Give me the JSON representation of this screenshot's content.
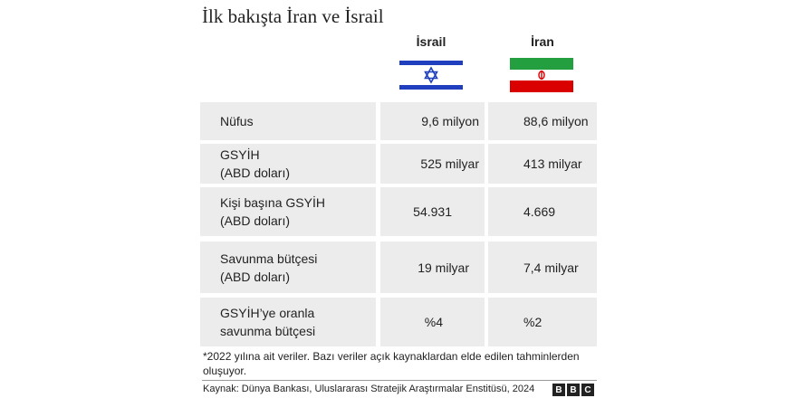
{
  "title": "İlk bakışta İran ve İsrail",
  "columns": {
    "israel": {
      "label": "İsrail",
      "flag_icon": "israel-flag-icon"
    },
    "iran": {
      "label": "İran",
      "flag_icon": "iran-flag-icon"
    }
  },
  "rows": [
    {
      "label_line1": "Nüfus",
      "label_line2": "",
      "israel": "9,6 milyon",
      "iran": "88,6 milyon"
    },
    {
      "label_line1": "GSYİH",
      "label_line2": "(ABD doları)",
      "israel": "525 milyar",
      "iran": "413 milyar"
    },
    {
      "label_line1": "Kişi başına GSYİH",
      "label_line2": "(ABD doları)",
      "israel": "54.931",
      "iran": "4.669"
    },
    {
      "label_line1": "Savunma bütçesi",
      "label_line2": "(ABD doları)",
      "israel": "19 milyar",
      "iran": "7,4 milyar"
    },
    {
      "label_line1": "GSYİH’ye oranla",
      "label_line2": "savunma bütçesi",
      "israel": "%4",
      "iran": "%2"
    }
  ],
  "note": "*2022 yılına ait veriler. Bazı veriler açık kaynaklardan elde edilen tahminlerden oluşuyor.",
  "source": "Kaynak: Dünya Bankası, Uluslararası Stratejik Araştırmalar Enstitüsü, 2024",
  "logo": {
    "letters": [
      "B",
      "B",
      "C"
    ]
  },
  "colors": {
    "israel_blue": "#1f3fbf",
    "iran_green": "#239f40",
    "iran_red": "#da0000",
    "cell_bg": "#ececec"
  }
}
